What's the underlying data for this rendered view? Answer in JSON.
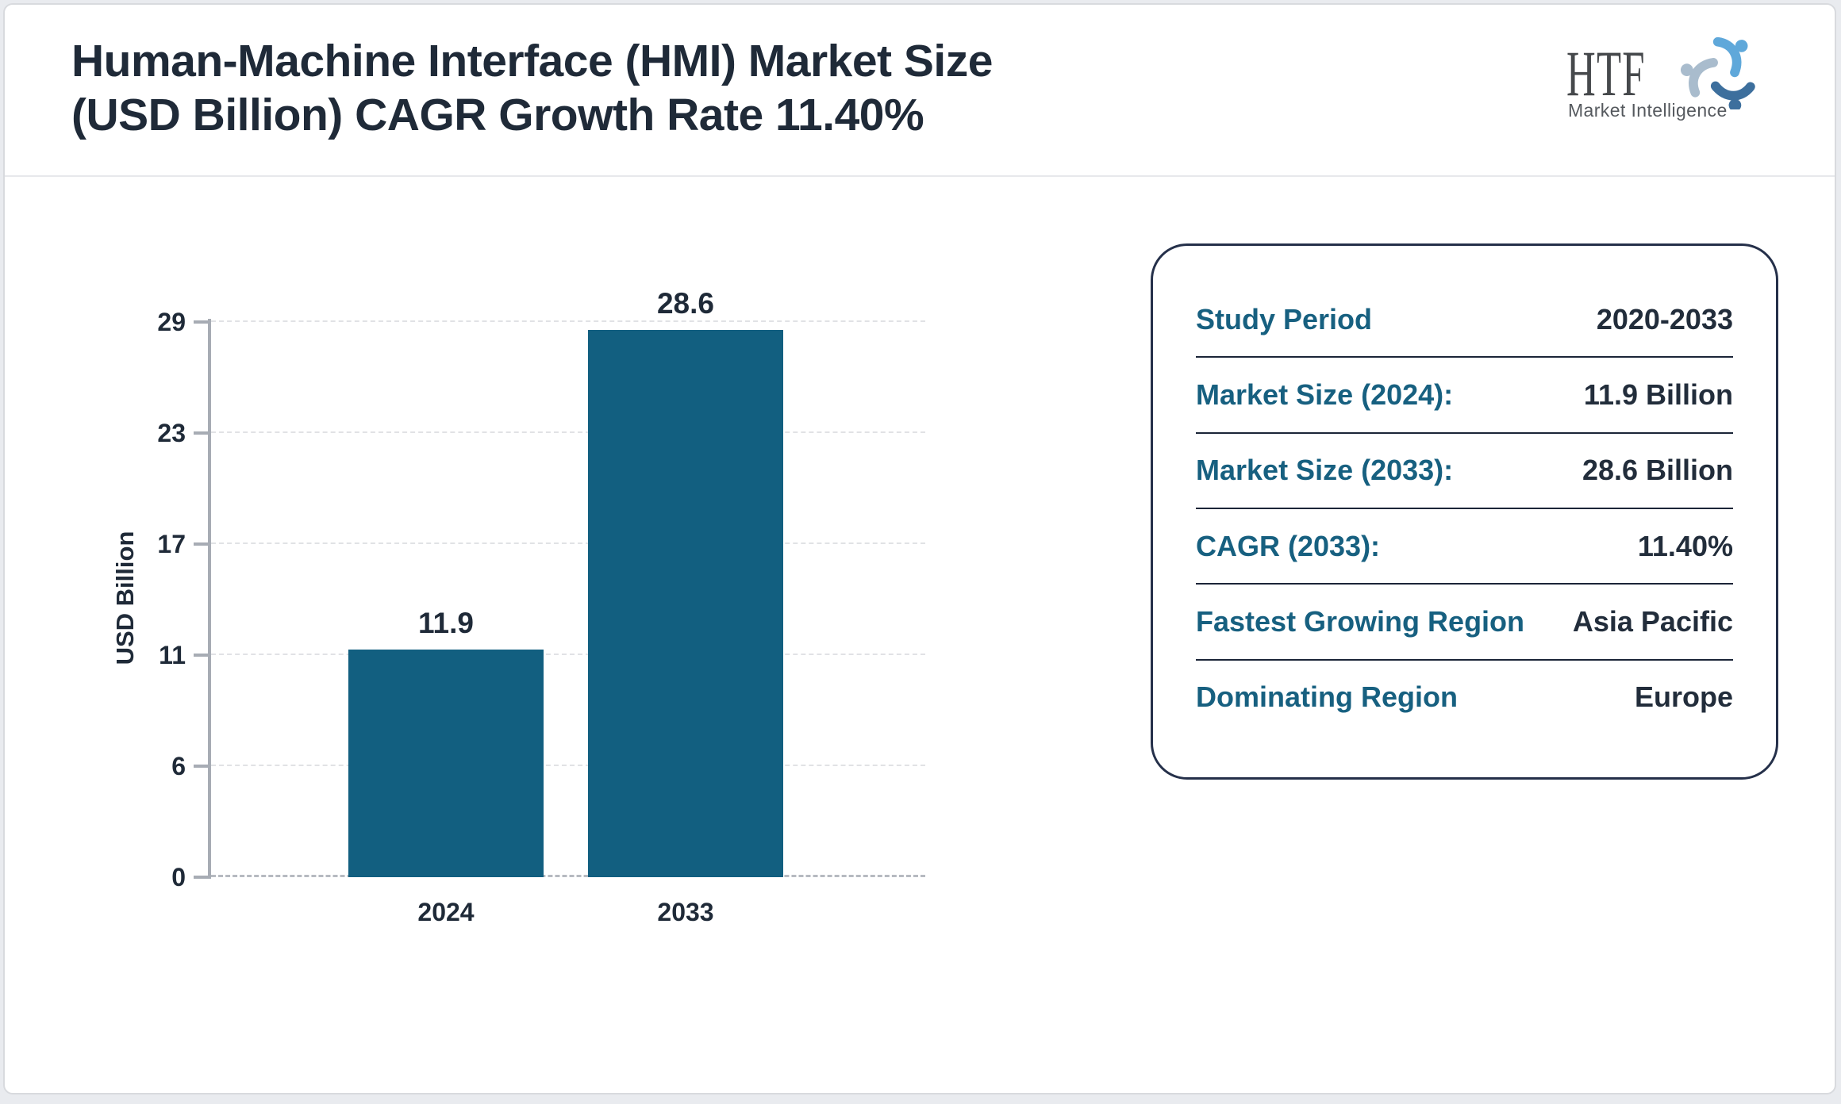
{
  "header": {
    "title_line1": "Human-Machine Interface (HMI) Market Size",
    "title_line2": "(USD Billion) CAGR Growth Rate 11.40%"
  },
  "logo": {
    "name": "HTF",
    "subtitle": "Market Intelligence",
    "swirl_colors": [
      "#5fa8da",
      "#3d6f9d",
      "#a9bccd"
    ]
  },
  "chart_data": {
    "type": "bar",
    "categories": [
      "2024",
      "2033"
    ],
    "values": [
      11.9,
      28.6
    ],
    "value_labels": [
      "11.9",
      "28.6"
    ],
    "title": "",
    "xlabel": "",
    "ylabel": "USD Billion",
    "yticks": [
      "0",
      "6",
      "11",
      "17",
      "23",
      "29"
    ],
    "ylim": [
      0,
      29
    ],
    "grid": "dashed horizontal",
    "legend": "none",
    "bar_color": "#125f80"
  },
  "panel": {
    "rows": [
      {
        "label": "Study Period",
        "value": "2020-2033"
      },
      {
        "label": "Market Size (2024):",
        "value": "11.9 Billion"
      },
      {
        "label": "Market Size (2033):",
        "value": "28.6 Billion"
      },
      {
        "label": "CAGR (2033):",
        "value": "11.40%"
      },
      {
        "label": "Fastest Growing Region",
        "value": "Asia Pacific"
      },
      {
        "label": "Dominating Region",
        "value": "Europe"
      }
    ]
  },
  "colors": {
    "bar": "#125f80",
    "panel_label_teal": "#176080",
    "text_navy": "#1f2a38",
    "axis_gray": "#a7acb4",
    "grid_gray": "#e1e2e5",
    "panel_border": "#25304a",
    "page_border": "#d8dade"
  }
}
